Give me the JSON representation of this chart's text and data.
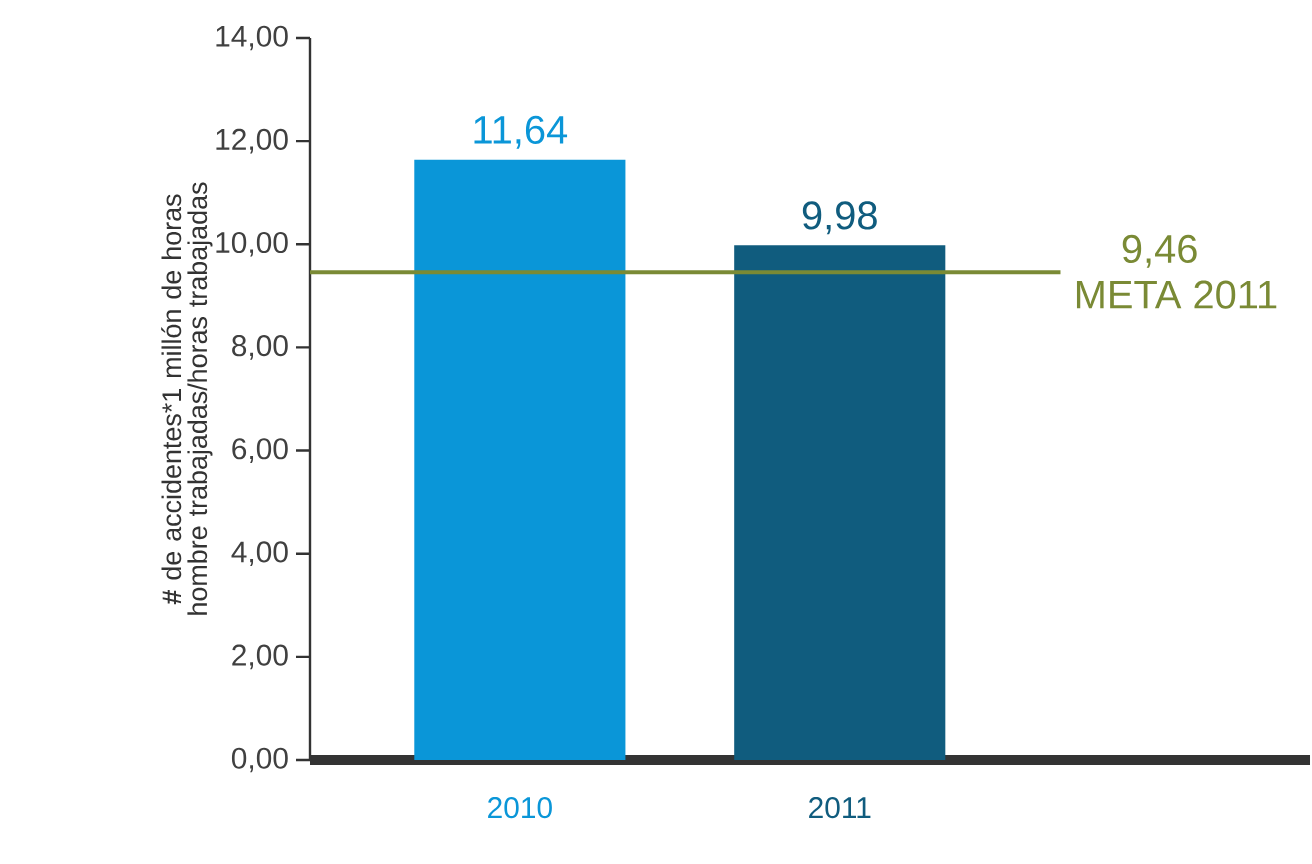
{
  "chart_data": {
    "type": "bar",
    "ylabel": "**#** de accidentes*1 millón de horas hombre trabajadas/horas trabajadas",
    "categories": [
      "2010",
      "2011"
    ],
    "values": [
      11.64,
      9.98
    ],
    "colors": [
      "#0a96d8",
      "#105c7e"
    ],
    "value_labels": [
      "11,64",
      "9,98"
    ],
    "ylim": [
      0,
      14
    ],
    "yticks": [
      {
        "value": 0,
        "label": "0,00"
      },
      {
        "value": 2,
        "label": "2,00"
      },
      {
        "value": 4,
        "label": "4,00"
      },
      {
        "value": 6,
        "label": "6,00"
      },
      {
        "value": 8,
        "label": "8,00"
      },
      {
        "value": 10,
        "label": "10,00"
      },
      {
        "value": 12,
        "label": "12,00"
      },
      {
        "value": 14,
        "label": "14,00"
      }
    ],
    "ref_lines": [
      {
        "axis": "y",
        "value": 9.46,
        "label": "META 2011",
        "color": "#7a8a35"
      }
    ],
    "annotations": [
      "9,46"
    ],
    "grid": false
  }
}
